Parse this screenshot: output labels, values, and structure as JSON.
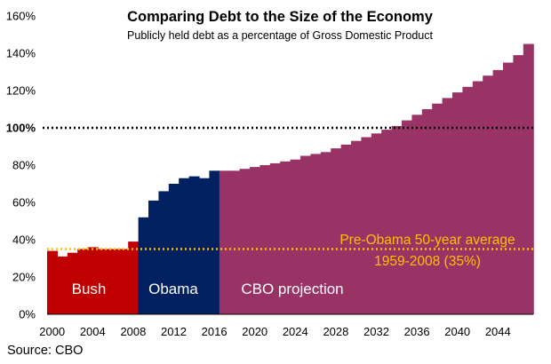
{
  "colors": {
    "bush": "#C00000",
    "obama": "#002060",
    "cbo": "#993366",
    "average_line": "#FFC000",
    "average_text": "#FFC000",
    "reference_line": "#000000",
    "bar_label_text": "#FFFFFF"
  },
  "chart_data": {
    "type": "bar",
    "title": "Comparing Debt to the Size of the Economy",
    "subtitle": "Publicly held debt as a percentage of Gross Domestic Product",
    "xlabel": "",
    "ylabel": "",
    "ylim": [
      0,
      160
    ],
    "xlim": [
      2000,
      2048
    ],
    "grid": false,
    "source": "Source:  CBO",
    "x_ticks": [
      "2000",
      "2004",
      "2008",
      "2012",
      "2016",
      "2020",
      "2024",
      "2028",
      "2032",
      "2036",
      "2040",
      "2044"
    ],
    "y_ticks": [
      "0%",
      "20%",
      "40%",
      "60%",
      "80%",
      "100%",
      "120%",
      "140%",
      "160%"
    ],
    "series": [
      {
        "name": "Bush",
        "color": "#C00000",
        "years": [
          2000,
          2001,
          2002,
          2003,
          2004,
          2005,
          2006,
          2007,
          2008
        ],
        "values": [
          34,
          31,
          33,
          35,
          36,
          35,
          35,
          35,
          39
        ]
      },
      {
        "name": "Obama",
        "color": "#002060",
        "years": [
          2009,
          2010,
          2011,
          2012,
          2013,
          2014,
          2015,
          2016
        ],
        "values": [
          52,
          61,
          66,
          70,
          73,
          74,
          73,
          77
        ]
      },
      {
        "name": "CBO projection",
        "color": "#993366",
        "years": [
          2017,
          2018,
          2019,
          2020,
          2021,
          2022,
          2023,
          2024,
          2025,
          2026,
          2027,
          2028,
          2029,
          2030,
          2031,
          2032,
          2033,
          2034,
          2035,
          2036,
          2037,
          2038,
          2039,
          2040,
          2041,
          2042,
          2043,
          2044,
          2045,
          2046,
          2047
        ],
        "values": [
          77,
          77,
          78,
          79,
          80,
          81,
          82,
          83,
          85,
          86,
          87,
          89,
          91,
          93,
          95,
          97,
          99,
          101,
          104,
          107,
          110,
          113,
          116,
          119,
          122,
          125,
          128,
          131,
          135,
          139,
          145
        ]
      }
    ],
    "reference_lines": [
      {
        "value": 100,
        "label": "100%",
        "style": "dotted"
      },
      {
        "value": 35,
        "label_line1": "Pre-Obama 50-year average",
        "label_line2": "1959-2008 (35%)",
        "style": "dotted"
      }
    ]
  }
}
